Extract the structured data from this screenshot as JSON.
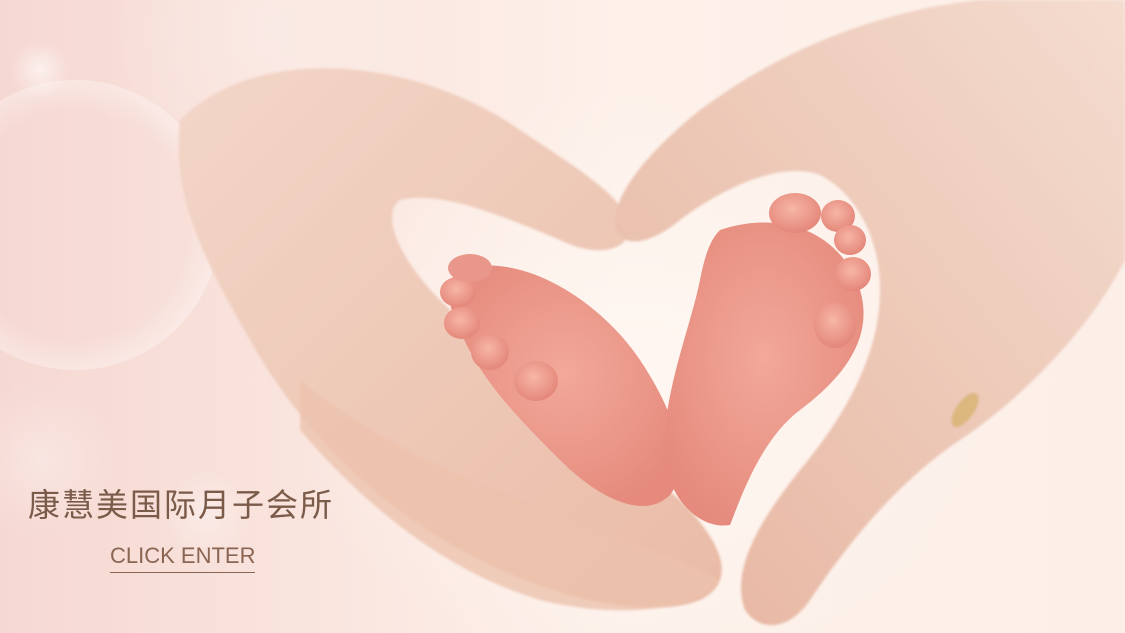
{
  "brand": {
    "title": "康慧美国际月子会所"
  },
  "cta": {
    "label": "CLICK ENTER"
  },
  "hero": {
    "image_subject": "adult hands forming a heart around baby feet"
  },
  "colors": {
    "title_text": "#7a5a48",
    "cta_text": "#8a6553",
    "background_pink": "#f6d8d2",
    "background_cream": "#fdf1ea"
  }
}
